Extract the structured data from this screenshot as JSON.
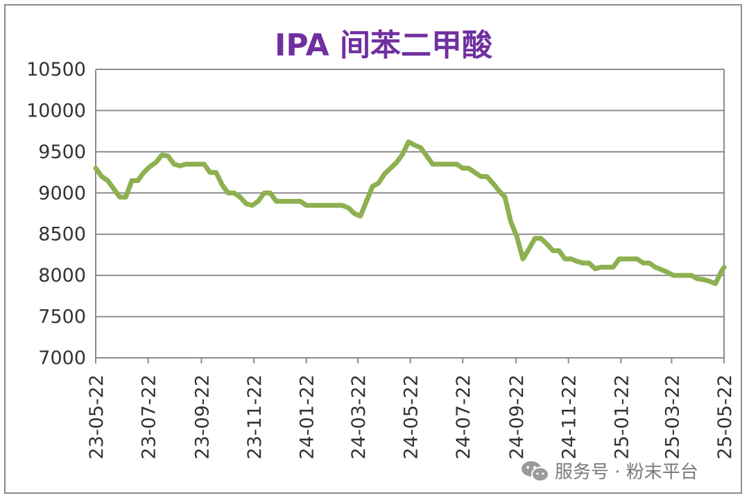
{
  "chart_data": {
    "type": "line",
    "title": "IPA 间苯二甲酸",
    "xlabel": "",
    "ylabel": "",
    "ylim": [
      7000,
      10500
    ],
    "yticks": [
      7000,
      7500,
      8000,
      8500,
      9000,
      9500,
      10000,
      10500
    ],
    "xticks": [
      "23-05-22",
      "23-07-22",
      "23-09-22",
      "23-11-22",
      "24-01-22",
      "24-03-22",
      "24-05-22",
      "24-07-22",
      "24-09-22",
      "24-11-22",
      "25-01-22",
      "25-03-22",
      "25-05-22"
    ],
    "grid": true,
    "legend": "none",
    "line_color": "#8db050",
    "series": [
      {
        "values": [
          [
            "2023-05-22",
            9300
          ],
          [
            "2023-05-29",
            9200
          ],
          [
            "2023-06-05",
            9150
          ],
          [
            "2023-06-12",
            9050
          ],
          [
            "2023-06-19",
            8950
          ],
          [
            "2023-06-26",
            8950
          ],
          [
            "2023-07-03",
            9150
          ],
          [
            "2023-07-10",
            9150
          ],
          [
            "2023-07-17",
            9250
          ],
          [
            "2023-07-24",
            9320
          ],
          [
            "2023-07-31",
            9370
          ],
          [
            "2023-08-07",
            9460
          ],
          [
            "2023-08-14",
            9450
          ],
          [
            "2023-08-21",
            9350
          ],
          [
            "2023-08-28",
            9330
          ],
          [
            "2023-09-04",
            9350
          ],
          [
            "2023-09-11",
            9350
          ],
          [
            "2023-09-18",
            9350
          ],
          [
            "2023-09-25",
            9350
          ],
          [
            "2023-10-02",
            9250
          ],
          [
            "2023-10-09",
            9250
          ],
          [
            "2023-10-16",
            9100
          ],
          [
            "2023-10-23",
            9000
          ],
          [
            "2023-10-30",
            9000
          ],
          [
            "2023-11-06",
            8950
          ],
          [
            "2023-11-13",
            8870
          ],
          [
            "2023-11-20",
            8850
          ],
          [
            "2023-11-27",
            8900
          ],
          [
            "2023-12-04",
            9000
          ],
          [
            "2023-12-11",
            9000
          ],
          [
            "2023-12-18",
            8900
          ],
          [
            "2023-12-25",
            8900
          ],
          [
            "2024-01-01",
            8900
          ],
          [
            "2024-01-08",
            8900
          ],
          [
            "2024-01-15",
            8900
          ],
          [
            "2024-01-22",
            8850
          ],
          [
            "2024-01-29",
            8850
          ],
          [
            "2024-02-05",
            8850
          ],
          [
            "2024-02-12",
            8850
          ],
          [
            "2024-02-19",
            8850
          ],
          [
            "2024-02-26",
            8850
          ],
          [
            "2024-03-04",
            8850
          ],
          [
            "2024-03-11",
            8820
          ],
          [
            "2024-03-18",
            8750
          ],
          [
            "2024-03-25",
            8720
          ],
          [
            "2024-04-01",
            8900
          ],
          [
            "2024-04-08",
            9080
          ],
          [
            "2024-04-15",
            9120
          ],
          [
            "2024-04-22",
            9230
          ],
          [
            "2024-04-29",
            9300
          ],
          [
            "2024-05-06",
            9370
          ],
          [
            "2024-05-13",
            9470
          ],
          [
            "2024-05-20",
            9620
          ],
          [
            "2024-05-27",
            9580
          ],
          [
            "2024-06-03",
            9550
          ],
          [
            "2024-06-10",
            9450
          ],
          [
            "2024-06-17",
            9350
          ],
          [
            "2024-06-24",
            9350
          ],
          [
            "2024-07-01",
            9350
          ],
          [
            "2024-07-08",
            9350
          ],
          [
            "2024-07-15",
            9350
          ],
          [
            "2024-07-22",
            9300
          ],
          [
            "2024-07-29",
            9300
          ],
          [
            "2024-08-05",
            9250
          ],
          [
            "2024-08-12",
            9200
          ],
          [
            "2024-08-19",
            9200
          ],
          [
            "2024-08-26",
            9120
          ],
          [
            "2024-09-02",
            9030
          ],
          [
            "2024-09-09",
            8950
          ],
          [
            "2024-09-16",
            8650
          ],
          [
            "2024-09-23",
            8470
          ],
          [
            "2024-09-30",
            8200
          ],
          [
            "2024-10-07",
            8320
          ],
          [
            "2024-10-14",
            8450
          ],
          [
            "2024-10-21",
            8450
          ],
          [
            "2024-10-28",
            8380
          ],
          [
            "2024-11-04",
            8300
          ],
          [
            "2024-11-11",
            8300
          ],
          [
            "2024-11-18",
            8200
          ],
          [
            "2024-11-25",
            8200
          ],
          [
            "2024-12-02",
            8170
          ],
          [
            "2024-12-09",
            8150
          ],
          [
            "2024-12-16",
            8150
          ],
          [
            "2024-12-23",
            8080
          ],
          [
            "2024-12-30",
            8100
          ],
          [
            "2025-01-06",
            8100
          ],
          [
            "2025-01-13",
            8100
          ],
          [
            "2025-01-20",
            8200
          ],
          [
            "2025-01-27",
            8200
          ],
          [
            "2025-02-03",
            8200
          ],
          [
            "2025-02-10",
            8200
          ],
          [
            "2025-02-17",
            8150
          ],
          [
            "2025-02-24",
            8150
          ],
          [
            "2025-03-03",
            8100
          ],
          [
            "2025-03-10",
            8070
          ],
          [
            "2025-03-17",
            8040
          ],
          [
            "2025-03-24",
            8000
          ],
          [
            "2025-03-31",
            8000
          ],
          [
            "2025-04-07",
            8000
          ],
          [
            "2025-04-14",
            8000
          ],
          [
            "2025-04-21",
            7960
          ],
          [
            "2025-04-28",
            7950
          ],
          [
            "2025-05-05",
            7930
          ],
          [
            "2025-05-12",
            7900
          ],
          [
            "2025-05-19",
            8050
          ],
          [
            "2025-05-22",
            8100
          ]
        ]
      }
    ]
  },
  "watermark": {
    "icon": "wechat-icon",
    "text": "服务号 · 粉末平台"
  }
}
